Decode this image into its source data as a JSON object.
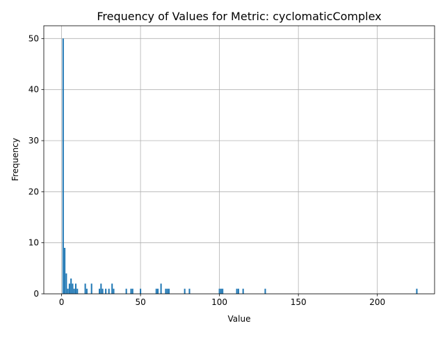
{
  "chart_data": {
    "type": "bar",
    "title": "Frequency of Values for Metric: cyclomaticComplex",
    "xlabel": "Value",
    "ylabel": "Frequency",
    "xlim": [
      -11.25,
      236.25
    ],
    "ylim": [
      0,
      52.5
    ],
    "xticks": [
      0,
      50,
      100,
      150,
      200
    ],
    "yticks": [
      0,
      10,
      20,
      30,
      40,
      50
    ],
    "grid": true,
    "bar_color": "#1f77b4",
    "bin_width": 0.9,
    "bars": [
      {
        "x": 1,
        "value": 50
      },
      {
        "x": 2,
        "value": 9
      },
      {
        "x": 3,
        "value": 4
      },
      {
        "x": 4,
        "value": 1
      },
      {
        "x": 5,
        "value": 2
      },
      {
        "x": 6,
        "value": 3
      },
      {
        "x": 7,
        "value": 2
      },
      {
        "x": 8,
        "value": 1
      },
      {
        "x": 9,
        "value": 2
      },
      {
        "x": 10,
        "value": 1
      },
      {
        "x": 15,
        "value": 2
      },
      {
        "x": 16,
        "value": 1
      },
      {
        "x": 19,
        "value": 2
      },
      {
        "x": 24,
        "value": 1
      },
      {
        "x": 25,
        "value": 2
      },
      {
        "x": 26,
        "value": 1
      },
      {
        "x": 28,
        "value": 1
      },
      {
        "x": 30,
        "value": 1
      },
      {
        "x": 32,
        "value": 2
      },
      {
        "x": 33,
        "value": 1
      },
      {
        "x": 41,
        "value": 1
      },
      {
        "x": 44,
        "value": 1
      },
      {
        "x": 45,
        "value": 1
      },
      {
        "x": 50,
        "value": 1
      },
      {
        "x": 60,
        "value": 1
      },
      {
        "x": 61,
        "value": 1
      },
      {
        "x": 63,
        "value": 2
      },
      {
        "x": 66,
        "value": 1
      },
      {
        "x": 67,
        "value": 1
      },
      {
        "x": 68,
        "value": 1
      },
      {
        "x": 78,
        "value": 1
      },
      {
        "x": 81,
        "value": 1
      },
      {
        "x": 100,
        "value": 1
      },
      {
        "x": 101,
        "value": 1
      },
      {
        "x": 102,
        "value": 1
      },
      {
        "x": 111,
        "value": 1
      },
      {
        "x": 112,
        "value": 1
      },
      {
        "x": 115,
        "value": 1
      },
      {
        "x": 129,
        "value": 1
      },
      {
        "x": 225,
        "value": 1
      }
    ]
  }
}
